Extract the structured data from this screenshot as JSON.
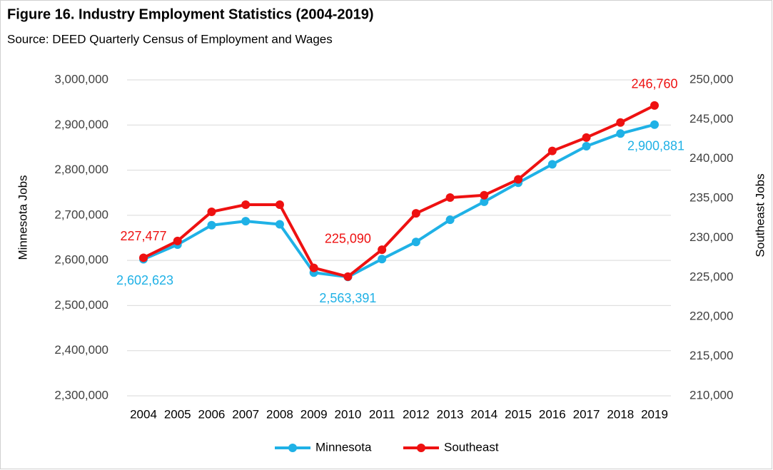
{
  "chart_data": {
    "type": "line",
    "title": "Figure 16. Industry Employment Statistics (2004-2019)",
    "subtitle": "Source: DEED Quarterly Census of Employment and Wages",
    "ylabel": "Minnesota Jobs",
    "y2label": "Southeast Jobs",
    "categories": [
      "2004",
      "2005",
      "2006",
      "2007",
      "2008",
      "2009",
      "2010",
      "2011",
      "2012",
      "2013",
      "2014",
      "2015",
      "2016",
      "2017",
      "2018",
      "2019"
    ],
    "series": [
      {
        "name": "Minnesota",
        "color": "#1fb1e6",
        "axis": "y",
        "values": [
          2602623,
          2635000,
          2678000,
          2687000,
          2680000,
          2573000,
          2563391,
          2603000,
          2641000,
          2690000,
          2730000,
          2772000,
          2813000,
          2853000,
          2881000,
          2900881
        ],
        "value_labels": [
          "2,602,623",
          null,
          null,
          null,
          null,
          null,
          "2,563,391",
          null,
          null,
          null,
          null,
          null,
          null,
          null,
          null,
          "2,900,881"
        ]
      },
      {
        "name": "Southeast",
        "color": "#ee1111",
        "axis": "y2",
        "values": [
          227477,
          229600,
          233300,
          234200,
          234200,
          226200,
          225090,
          228500,
          233100,
          235100,
          235400,
          237400,
          241000,
          242700,
          244600,
          246760
        ],
        "value_labels": [
          "227,477",
          null,
          null,
          null,
          null,
          null,
          "225,090",
          null,
          null,
          null,
          null,
          null,
          null,
          null,
          null,
          "246,760"
        ]
      }
    ],
    "ylim": [
      2300000,
      3000000
    ],
    "yticks": [
      {
        "value": 2300000,
        "label": "2,300,000"
      },
      {
        "value": 2400000,
        "label": "2,400,000"
      },
      {
        "value": 2500000,
        "label": "2,500,000"
      },
      {
        "value": 2600000,
        "label": "2,600,000"
      },
      {
        "value": 2700000,
        "label": "2,700,000"
      },
      {
        "value": 2800000,
        "label": "2,800,000"
      },
      {
        "value": 2900000,
        "label": "2,900,000"
      },
      {
        "value": 3000000,
        "label": "3,000,000"
      }
    ],
    "y2lim": [
      210000,
      250000
    ],
    "y2ticks": [
      {
        "value": 210000,
        "label": "210,000"
      },
      {
        "value": 215000,
        "label": "215,000"
      },
      {
        "value": 220000,
        "label": "220,000"
      },
      {
        "value": 225000,
        "label": "225,000"
      },
      {
        "value": 230000,
        "label": "230,000"
      },
      {
        "value": 235000,
        "label": "235,000"
      },
      {
        "value": 240000,
        "label": "240,000"
      },
      {
        "value": 245000,
        "label": "245,000"
      },
      {
        "value": 250000,
        "label": "250,000"
      }
    ],
    "grid": true,
    "legend": "bottom"
  }
}
